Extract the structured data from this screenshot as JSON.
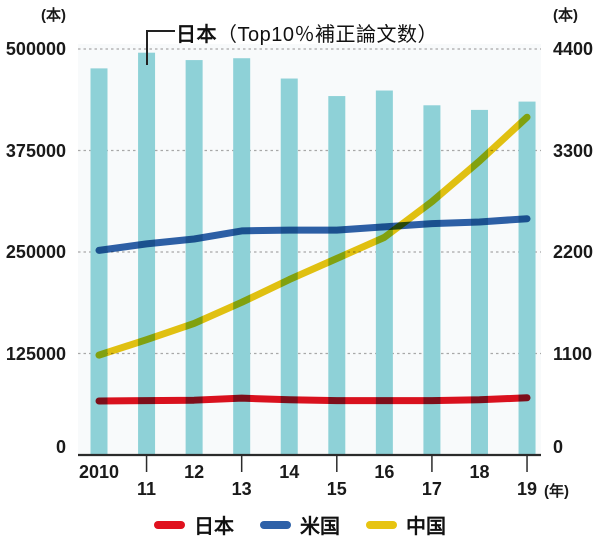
{
  "axes": {
    "left_unit": "(本)",
    "right_unit": "(本)",
    "left_ticks": [
      "500000",
      "375000",
      "250000",
      "125000",
      "0"
    ],
    "right_ticks": [
      "4400",
      "3300",
      "2200",
      "1100",
      "0"
    ],
    "x_upper_labels": [
      "2010",
      "12",
      "14",
      "16",
      "18"
    ],
    "x_lower_labels": [
      "11",
      "13",
      "15",
      "17",
      "19"
    ],
    "year_suffix": "(年)"
  },
  "annotation": {
    "bold": "日本",
    "rest": "（Top10％補正論文数）"
  },
  "legend": [
    {
      "label": "日本",
      "color": "#e0111e"
    },
    {
      "label": "米国",
      "color": "#2e61a8"
    },
    {
      "label": "中国",
      "color": "#e7c411"
    }
  ],
  "colors": {
    "bar": "#8ed1d7",
    "plot_background": "#f8fafb",
    "grid": "#a8a8a8",
    "axis": "#2b2b2b",
    "text": "#1a1a1a"
  },
  "chart_data": {
    "type": "bar+line combo",
    "title_annotation": "日本（Top10％補正論文数）",
    "x_years": [
      "2010",
      "11",
      "12",
      "13",
      "14",
      "15",
      "16",
      "17",
      "18",
      "19"
    ],
    "bars": {
      "name": "日本（Top10％補正論文数）",
      "axis": "right",
      "unit": "本",
      "color": "#8ed1d7",
      "values": [
        4190,
        4360,
        4280,
        4300,
        4080,
        3890,
        3950,
        3790,
        3740,
        3830
      ]
    },
    "series": [
      {
        "name": "日本",
        "axis": "left",
        "color": "#e0111e",
        "values": [
          66500,
          67000,
          67500,
          70000,
          68000,
          67000,
          67000,
          67000,
          68000,
          70500
        ]
      },
      {
        "name": "米国",
        "axis": "left",
        "color": "#2e61a8",
        "values": [
          252000,
          260000,
          266000,
          276000,
          277000,
          277000,
          281000,
          285000,
          287000,
          291000
        ]
      },
      {
        "name": "中国",
        "axis": "left",
        "color": "#e7c411",
        "values": [
          123000,
          142000,
          162000,
          188000,
          216000,
          242000,
          268000,
          312000,
          362000,
          416000
        ]
      }
    ],
    "left_axis": {
      "unit": "本",
      "range": [
        0,
        500000
      ],
      "tick_step": 125000,
      "applies_to": "lines"
    },
    "right_axis": {
      "unit": "本",
      "range": [
        0,
        4400
      ],
      "tick_step": 1100,
      "applies_to": "bars"
    },
    "grid": "horizontal dashed",
    "legend_position": "bottom center"
  }
}
